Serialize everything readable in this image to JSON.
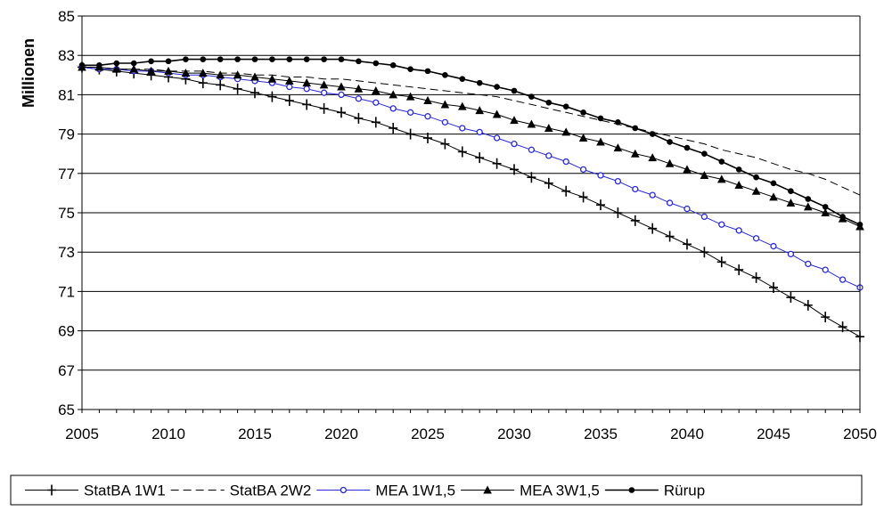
{
  "chart_data": {
    "type": "line",
    "title": "",
    "xlabel": "",
    "ylabel": "Millionen",
    "xlim": [
      2005,
      2050
    ],
    "ylim": [
      65,
      85
    ],
    "xticks": [
      2005,
      2010,
      2015,
      2020,
      2025,
      2030,
      2035,
      2040,
      2045,
      2050
    ],
    "yticks": [
      65,
      67,
      69,
      71,
      73,
      75,
      77,
      79,
      81,
      83,
      85
    ],
    "grid": "horizontal",
    "legend_position": "bottom",
    "x": [
      2005,
      2006,
      2007,
      2008,
      2009,
      2010,
      2011,
      2012,
      2013,
      2014,
      2015,
      2016,
      2017,
      2018,
      2019,
      2020,
      2021,
      2022,
      2023,
      2024,
      2025,
      2026,
      2027,
      2028,
      2029,
      2030,
      2031,
      2032,
      2033,
      2034,
      2035,
      2036,
      2037,
      2038,
      2039,
      2040,
      2041,
      2042,
      2043,
      2044,
      2045,
      2046,
      2047,
      2048,
      2049,
      2050
    ],
    "series": [
      {
        "name": "StatBA 1W1",
        "color": "#000000",
        "dash": "",
        "marker": "plus",
        "values": [
          82.4,
          82.3,
          82.2,
          82.1,
          82.0,
          81.9,
          81.8,
          81.6,
          81.5,
          81.3,
          81.1,
          80.9,
          80.7,
          80.5,
          80.3,
          80.1,
          79.8,
          79.6,
          79.3,
          79.0,
          78.8,
          78.5,
          78.1,
          77.8,
          77.5,
          77.2,
          76.8,
          76.5,
          76.1,
          75.8,
          75.4,
          75.0,
          74.6,
          74.2,
          73.8,
          73.4,
          73.0,
          72.5,
          72.1,
          71.7,
          71.2,
          70.7,
          70.3,
          69.7,
          69.2,
          68.7
        ]
      },
      {
        "name": "StatBA 2W2",
        "color": "#000000",
        "dash": "9,5",
        "marker": "none",
        "values": [
          82.4,
          82.4,
          82.3,
          82.3,
          82.3,
          82.2,
          82.2,
          82.2,
          82.1,
          82.1,
          82.0,
          82.0,
          81.9,
          81.9,
          81.8,
          81.8,
          81.7,
          81.6,
          81.5,
          81.4,
          81.3,
          81.2,
          81.1,
          81.0,
          80.9,
          80.7,
          80.5,
          80.3,
          80.1,
          79.9,
          79.7,
          79.5,
          79.3,
          79.1,
          78.9,
          78.7,
          78.5,
          78.2,
          78.0,
          77.8,
          77.5,
          77.2,
          77.0,
          76.7,
          76.3,
          75.9
        ]
      },
      {
        "name": "MEA 1W1,5",
        "color": "#2a2ae0",
        "dash": "",
        "marker": "circle-open",
        "values": [
          82.4,
          82.3,
          82.3,
          82.2,
          82.2,
          82.1,
          82.0,
          82.0,
          81.9,
          81.8,
          81.7,
          81.6,
          81.4,
          81.3,
          81.1,
          81.0,
          80.8,
          80.6,
          80.3,
          80.1,
          79.9,
          79.6,
          79.3,
          79.1,
          78.8,
          78.5,
          78.2,
          77.9,
          77.6,
          77.2,
          76.9,
          76.6,
          76.2,
          75.9,
          75.5,
          75.2,
          74.8,
          74.4,
          74.1,
          73.7,
          73.3,
          72.9,
          72.4,
          72.1,
          71.6,
          71.2
        ]
      },
      {
        "name": "MEA 3W1,5",
        "color": "#000000",
        "dash": "",
        "marker": "triangle",
        "values": [
          82.4,
          82.4,
          82.3,
          82.3,
          82.2,
          82.2,
          82.1,
          82.1,
          82.0,
          82.0,
          81.9,
          81.8,
          81.7,
          81.6,
          81.5,
          81.4,
          81.3,
          81.2,
          81.0,
          80.9,
          80.7,
          80.5,
          80.4,
          80.2,
          80.0,
          79.7,
          79.5,
          79.3,
          79.1,
          78.8,
          78.6,
          78.3,
          78.0,
          77.8,
          77.5,
          77.2,
          76.9,
          76.7,
          76.4,
          76.1,
          75.8,
          75.5,
          75.3,
          75.0,
          74.7,
          74.3
        ]
      },
      {
        "name": "Rürup",
        "color": "#000000",
        "dash": "",
        "marker": "circle-filled",
        "values": [
          82.5,
          82.5,
          82.6,
          82.6,
          82.7,
          82.7,
          82.8,
          82.8,
          82.8,
          82.8,
          82.8,
          82.8,
          82.8,
          82.8,
          82.8,
          82.8,
          82.7,
          82.6,
          82.5,
          82.3,
          82.2,
          82.0,
          81.8,
          81.6,
          81.4,
          81.2,
          80.9,
          80.6,
          80.4,
          80.1,
          79.8,
          79.6,
          79.3,
          79.0,
          78.6,
          78.3,
          78.0,
          77.6,
          77.2,
          76.8,
          76.5,
          76.1,
          75.7,
          75.3,
          74.8,
          74.4
        ]
      }
    ]
  }
}
